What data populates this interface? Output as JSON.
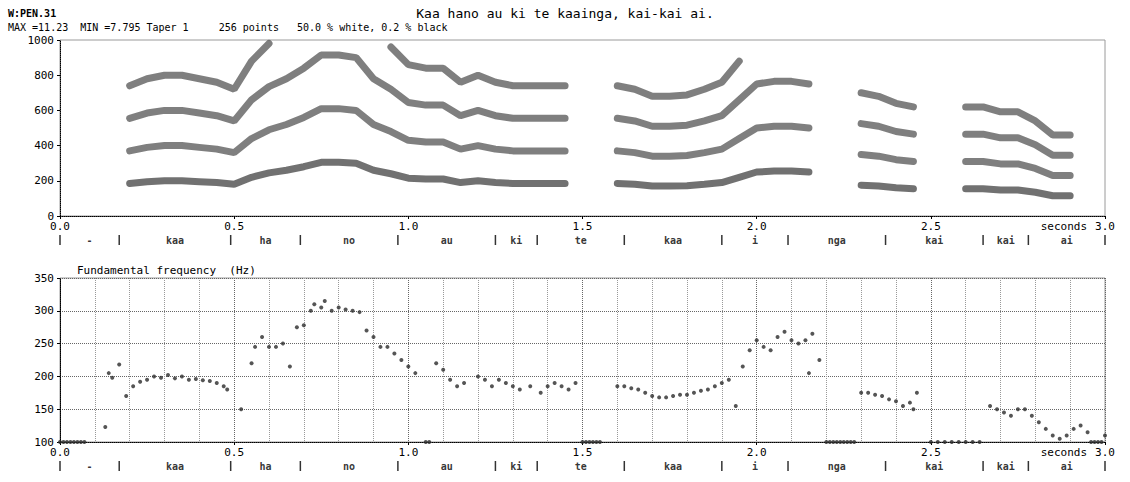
{
  "header": {
    "id": "W:PEN.31",
    "info": "MAX =11.23  MIN =7.795 Taper 1     256 points   50.0 % white, 0.2 % black",
    "title": "Kaa hano au ki te kaainga, kai-kai ai."
  },
  "segments": {
    "labels": [
      "-",
      "kaa",
      "ha",
      "no",
      "au",
      "ki",
      "te",
      "kaa",
      "i",
      "nga",
      "kai",
      "kai",
      "ai"
    ],
    "boundaries": [
      0,
      0.17,
      0.49,
      0.69,
      0.97,
      1.25,
      1.37,
      1.62,
      1.9,
      2.09,
      2.37,
      2.65,
      2.78,
      3
    ]
  },
  "chart_data": [
    {
      "type": "line",
      "x": [
        0.2,
        0.25,
        0.3,
        0.35,
        0.4,
        0.45,
        0.5,
        0.55,
        0.6,
        0.65,
        0.7,
        0.75,
        0.8,
        0.85,
        0.9,
        0.95,
        1,
        1.05,
        1.1,
        1.15,
        1.2,
        1.25,
        1.3,
        1.35,
        1.4,
        1.45,
        1.5,
        1.55,
        1.6,
        1.65,
        1.7,
        1.75,
        1.8,
        1.85,
        1.9,
        1.95,
        2,
        2.05,
        2.1,
        2.15,
        2.2,
        2.25,
        2.3,
        2.35,
        2.4,
        2.45,
        2.5,
        2.55,
        2.6,
        2.65,
        2.7,
        2.75,
        2.8,
        2.85,
        2.9,
        2.95
      ],
      "series": [
        {
          "color": "#3a3a3a",
          "values": [
            185,
            195,
            200,
            200,
            195,
            190,
            180,
            220,
            245,
            260,
            280,
            305,
            305,
            300,
            260,
            240,
            215,
            210,
            210,
            190,
            200,
            190,
            185,
            185,
            185,
            185,
            null,
            null,
            185,
            180,
            170,
            170,
            172,
            180,
            190,
            220,
            250,
            255,
            255,
            250,
            null,
            null,
            175,
            170,
            160,
            155,
            null,
            null,
            155,
            155,
            148,
            148,
            135,
            115,
            115,
            null
          ]
        },
        {
          "color": "#4d4d4d",
          "values": [
            370,
            390,
            400,
            400,
            390,
            380,
            360,
            440,
            490,
            520,
            560,
            610,
            610,
            600,
            520,
            480,
            430,
            420,
            420,
            380,
            400,
            380,
            370,
            370,
            370,
            370,
            null,
            null,
            370,
            360,
            340,
            340,
            344,
            360,
            380,
            440,
            500,
            510,
            510,
            500,
            null,
            null,
            350,
            340,
            320,
            310,
            null,
            null,
            310,
            310,
            296,
            296,
            270,
            230,
            230,
            null
          ]
        },
        {
          "color": "#4d4d4d",
          "values": [
            555,
            585,
            600,
            600,
            585,
            570,
            540,
            660,
            735,
            780,
            840,
            915,
            915,
            900,
            780,
            720,
            645,
            630,
            630,
            570,
            600,
            570,
            555,
            555,
            555,
            555,
            null,
            null,
            555,
            540,
            510,
            510,
            516,
            540,
            570,
            660,
            750,
            765,
            765,
            750,
            null,
            null,
            525,
            510,
            480,
            465,
            null,
            null,
            465,
            465,
            444,
            444,
            405,
            345,
            345,
            null
          ]
        },
        {
          "color": "#4d4d4d",
          "values": [
            740,
            780,
            800,
            800,
            780,
            760,
            720,
            880,
            980,
            null,
            null,
            null,
            null,
            null,
            null,
            960,
            860,
            840,
            840,
            760,
            800,
            760,
            740,
            740,
            740,
            740,
            null,
            null,
            740,
            720,
            680,
            680,
            688,
            720,
            760,
            880,
            null,
            null,
            null,
            null,
            null,
            null,
            700,
            680,
            640,
            620,
            null,
            null,
            620,
            620,
            592,
            592,
            540,
            460,
            460,
            null
          ]
        }
      ],
      "line_style": "solid",
      "xlim": [
        0,
        3
      ],
      "xticks": [
        {
          "value": 0,
          "label": "0.0"
        },
        0.5,
        {
          "value": 1,
          "label": "1.0"
        },
        1.5,
        {
          "value": 2,
          "label": "2.0"
        },
        2.5,
        {
          "value": 3,
          "label": "3.0"
        }
      ],
      "ylim": [
        0,
        1000
      ],
      "yticks": [
        0,
        200,
        400,
        600,
        800,
        1000
      ],
      "xlabel": "seconds",
      "grid": false
    },
    {
      "type": "scatter",
      "title": "Fundamental frequency  (Hz)",
      "x": [
        0,
        0.01,
        0.02,
        0.03,
        0.04,
        0.05,
        0.06,
        0.07,
        0.13,
        0.14,
        0.15,
        0.17,
        0.19,
        0.21,
        0.23,
        0.25,
        0.27,
        0.29,
        0.31,
        0.33,
        0.35,
        0.37,
        0.39,
        0.41,
        0.43,
        0.45,
        0.47,
        0.48,
        0.52,
        0.55,
        0.56,
        0.58,
        0.6,
        0.62,
        0.64,
        0.66,
        0.68,
        0.7,
        0.72,
        0.73,
        0.75,
        0.76,
        0.78,
        0.8,
        0.82,
        0.84,
        0.86,
        0.88,
        0.9,
        0.92,
        0.94,
        0.96,
        0.98,
        1,
        1.02,
        1.05,
        1.06,
        1.08,
        1.1,
        1.12,
        1.14,
        1.16,
        1.2,
        1.22,
        1.24,
        1.26,
        1.28,
        1.3,
        1.32,
        1.35,
        1.38,
        1.4,
        1.42,
        1.44,
        1.46,
        1.48,
        1.5,
        1.51,
        1.52,
        1.53,
        1.54,
        1.55,
        1.6,
        1.62,
        1.64,
        1.66,
        1.68,
        1.7,
        1.72,
        1.74,
        1.76,
        1.78,
        1.8,
        1.82,
        1.84,
        1.86,
        1.88,
        1.9,
        1.92,
        1.94,
        1.96,
        1.98,
        2,
        2.02,
        2.04,
        2.06,
        2.08,
        2.1,
        2.12,
        2.14,
        2.15,
        2.16,
        2.18,
        2.2,
        2.21,
        2.22,
        2.23,
        2.24,
        2.25,
        2.26,
        2.27,
        2.28,
        2.3,
        2.32,
        2.34,
        2.36,
        2.38,
        2.4,
        2.42,
        2.44,
        2.45,
        2.46,
        2.5,
        2.52,
        2.54,
        2.56,
        2.58,
        2.6,
        2.62,
        2.64,
        2.67,
        2.69,
        2.71,
        2.73,
        2.75,
        2.77,
        2.79,
        2.81,
        2.83,
        2.85,
        2.87,
        2.89,
        2.91,
        2.93,
        2.95,
        2.96,
        2.97,
        2.98,
        2.99,
        3
      ],
      "values": [
        100,
        100,
        100,
        100,
        100,
        100,
        100,
        100,
        123,
        205,
        198,
        218,
        170,
        185,
        192,
        195,
        200,
        198,
        202,
        197,
        200,
        195,
        196,
        194,
        193,
        190,
        185,
        180,
        150,
        220,
        245,
        260,
        245,
        245,
        250,
        215,
        275,
        278,
        300,
        310,
        305,
        315,
        300,
        305,
        302,
        300,
        298,
        270,
        260,
        245,
        245,
        235,
        225,
        215,
        205,
        100,
        100,
        220,
        210,
        195,
        185,
        190,
        200,
        195,
        185,
        195,
        190,
        185,
        180,
        185,
        175,
        185,
        190,
        185,
        180,
        190,
        100,
        100,
        100,
        100,
        100,
        100,
        185,
        185,
        182,
        180,
        175,
        170,
        168,
        168,
        170,
        172,
        172,
        175,
        178,
        180,
        185,
        190,
        195,
        155,
        215,
        240,
        255,
        245,
        240,
        260,
        268,
        255,
        250,
        255,
        205,
        265,
        225,
        100,
        100,
        100,
        100,
        100,
        100,
        100,
        100,
        100,
        175,
        175,
        172,
        170,
        165,
        162,
        155,
        160,
        150,
        175,
        100,
        100,
        100,
        100,
        100,
        100,
        100,
        100,
        155,
        150,
        145,
        140,
        150,
        150,
        140,
        130,
        120,
        110,
        105,
        110,
        120,
        125,
        115,
        100,
        100,
        100,
        100,
        110
      ],
      "color": "#2b2b2b",
      "marker": "circle",
      "xlim": [
        0,
        3
      ],
      "xticks": [
        {
          "value": 0,
          "label": "0.0"
        },
        0.5,
        {
          "value": 1,
          "label": "1.0"
        },
        1.5,
        {
          "value": 2,
          "label": "2.0"
        },
        2.5,
        {
          "value": 3,
          "label": "3.0"
        }
      ],
      "ylim": [
        100,
        350
      ],
      "yticks": [
        100,
        150,
        200,
        250,
        300,
        350
      ],
      "xlabel": "seconds",
      "grid": true
    }
  ]
}
